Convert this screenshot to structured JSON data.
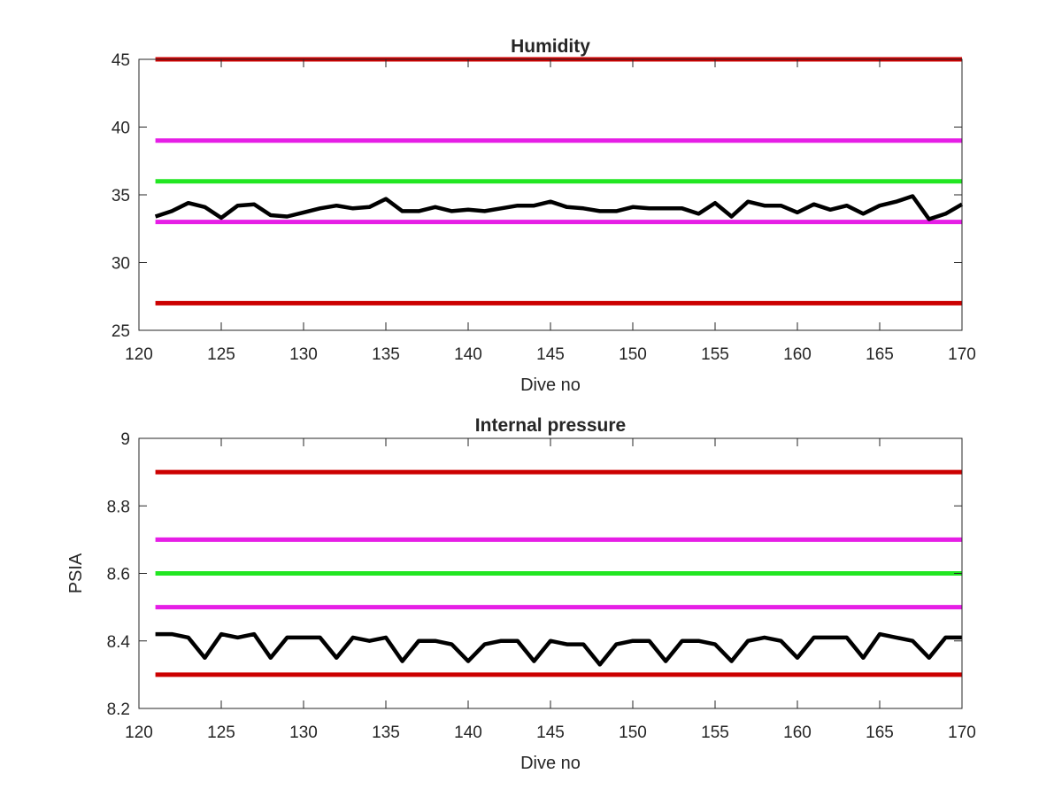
{
  "chart_data": [
    {
      "type": "line",
      "title": "Humidity",
      "xlabel": "Dive no",
      "ylabel": "",
      "xlim": [
        120,
        170
      ],
      "ylim": [
        25,
        45
      ],
      "xticks": [
        "120",
        "125",
        "130",
        "135",
        "140",
        "145",
        "150",
        "155",
        "160",
        "165",
        "170"
      ],
      "yticks": [
        "25",
        "30",
        "35",
        "40",
        "45"
      ],
      "grid": false,
      "thresholds": [
        {
          "y": 45,
          "color": "#cc0000",
          "x": [
            121,
            170
          ]
        },
        {
          "y": 39,
          "color": "#e61ee6",
          "x": [
            121,
            170
          ]
        },
        {
          "y": 36,
          "color": "#22e622",
          "x": [
            121,
            170
          ]
        },
        {
          "y": 33,
          "color": "#e61ee6",
          "x": [
            121,
            170
          ]
        },
        {
          "y": 27,
          "color": "#cc0000",
          "x": [
            121,
            170
          ]
        }
      ],
      "series": [
        {
          "color": "#000000",
          "x": [
            121,
            122,
            123,
            124,
            125,
            126,
            127,
            128,
            129,
            130,
            131,
            132,
            133,
            134,
            135,
            136,
            137,
            138,
            139,
            140,
            141,
            142,
            143,
            144,
            145,
            146,
            147,
            148,
            149,
            150,
            151,
            152,
            153,
            154,
            155,
            156,
            157,
            158,
            159,
            160,
            161,
            162,
            163,
            164,
            165,
            166,
            167,
            168,
            169,
            170
          ],
          "y": [
            33.4,
            33.8,
            34.4,
            34.1,
            33.3,
            34.2,
            34.3,
            33.5,
            33.4,
            33.7,
            34.0,
            34.2,
            34.0,
            34.1,
            34.7,
            33.8,
            33.8,
            34.1,
            33.8,
            33.9,
            33.8,
            34.0,
            34.2,
            34.2,
            34.5,
            34.1,
            34.0,
            33.8,
            33.8,
            34.1,
            34.0,
            34.0,
            34.0,
            33.6,
            34.4,
            33.4,
            34.5,
            34.2,
            34.2,
            33.7,
            34.3,
            33.9,
            34.2,
            33.6,
            34.2,
            34.5,
            34.9,
            33.2,
            33.6,
            34.3
          ]
        }
      ]
    },
    {
      "type": "line",
      "title": "Internal pressure",
      "xlabel": "Dive no",
      "ylabel": "PSIA",
      "xlim": [
        120,
        170
      ],
      "ylim": [
        8.2,
        9
      ],
      "xticks": [
        "120",
        "125",
        "130",
        "135",
        "140",
        "145",
        "150",
        "155",
        "160",
        "165",
        "170"
      ],
      "yticks": [
        "8.2",
        "8.4",
        "8.6",
        "8.8",
        "9"
      ],
      "grid": false,
      "thresholds": [
        {
          "y": 8.9,
          "color": "#cc0000",
          "x": [
            121,
            170
          ]
        },
        {
          "y": 8.7,
          "color": "#e61ee6",
          "x": [
            121,
            170
          ]
        },
        {
          "y": 8.6,
          "color": "#22e622",
          "x": [
            121,
            170
          ]
        },
        {
          "y": 8.5,
          "color": "#e61ee6",
          "x": [
            121,
            170
          ]
        },
        {
          "y": 8.3,
          "color": "#cc0000",
          "x": [
            121,
            170
          ]
        }
      ],
      "series": [
        {
          "color": "#000000",
          "x": [
            121,
            122,
            123,
            124,
            125,
            126,
            127,
            128,
            129,
            130,
            131,
            132,
            133,
            134,
            135,
            136,
            137,
            138,
            139,
            140,
            141,
            142,
            143,
            144,
            145,
            146,
            147,
            148,
            149,
            150,
            151,
            152,
            153,
            154,
            155,
            156,
            157,
            158,
            159,
            160,
            161,
            162,
            163,
            164,
            165,
            166,
            167,
            168,
            169,
            170
          ],
          "y": [
            8.42,
            8.42,
            8.41,
            8.35,
            8.42,
            8.41,
            8.42,
            8.35,
            8.41,
            8.41,
            8.41,
            8.35,
            8.41,
            8.4,
            8.41,
            8.34,
            8.4,
            8.4,
            8.39,
            8.34,
            8.39,
            8.4,
            8.4,
            8.34,
            8.4,
            8.39,
            8.39,
            8.33,
            8.39,
            8.4,
            8.4,
            8.34,
            8.4,
            8.4,
            8.39,
            8.34,
            8.4,
            8.41,
            8.4,
            8.35,
            8.41,
            8.41,
            8.41,
            8.35,
            8.42,
            8.41,
            8.4,
            8.35,
            8.41,
            8.41
          ]
        }
      ]
    }
  ]
}
